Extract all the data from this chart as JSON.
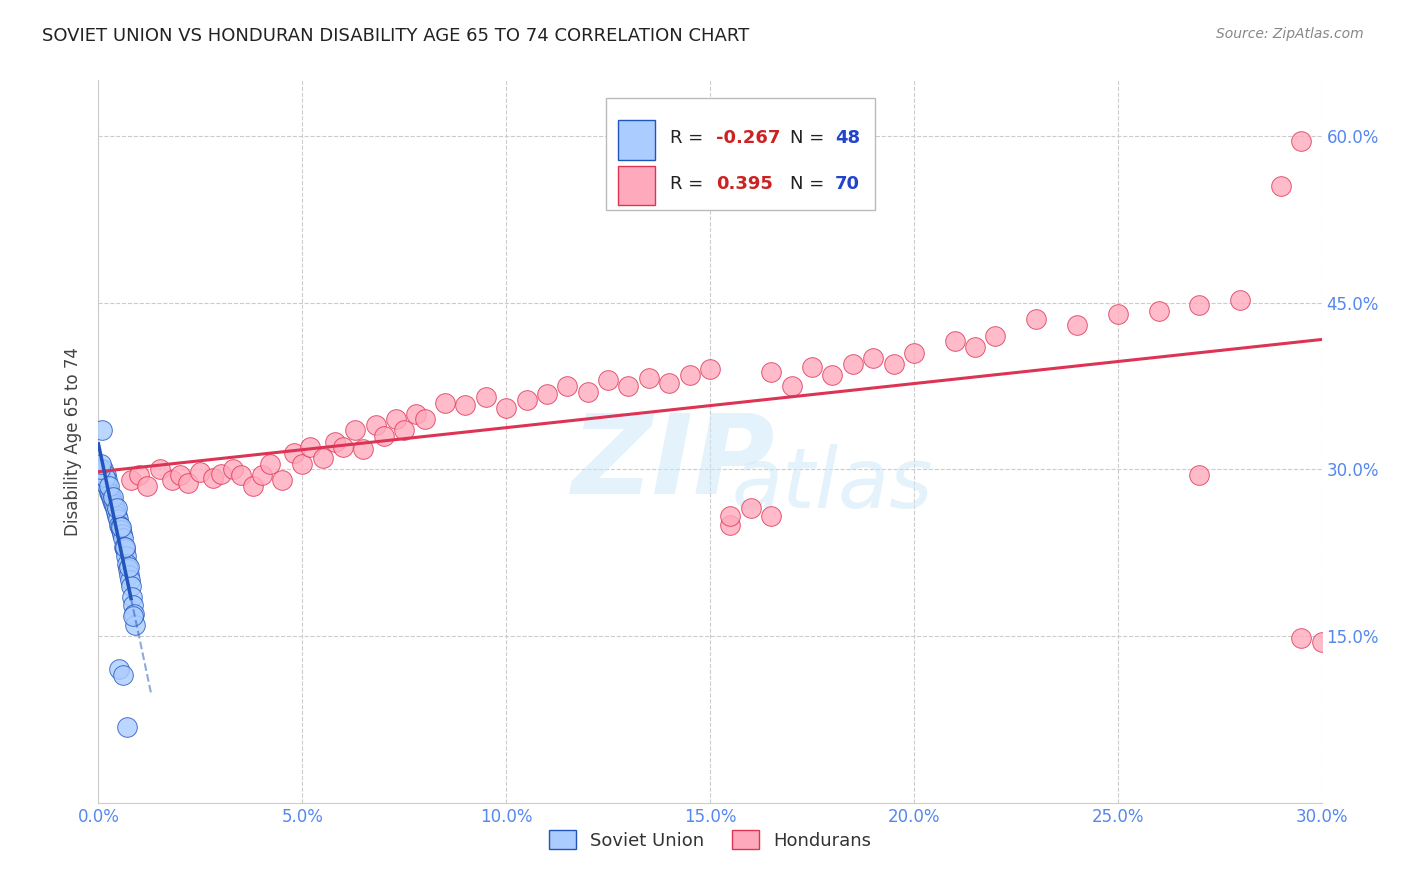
{
  "title": "SOVIET UNION VS HONDURAN DISABILITY AGE 65 TO 74 CORRELATION CHART",
  "source": "Source: ZipAtlas.com",
  "ylabel": "Disability Age 65 to 74",
  "xlim": [
    0.0,
    0.3
  ],
  "ylim": [
    0.0,
    0.65
  ],
  "xticks": [
    0.0,
    0.05,
    0.1,
    0.15,
    0.2,
    0.25,
    0.3
  ],
  "yticks": [
    0.15,
    0.3,
    0.45,
    0.6
  ],
  "ytick_labels": [
    "15.0%",
    "30.0%",
    "45.0%",
    "60.0%"
  ],
  "xtick_labels": [
    "0.0%",
    "5.0%",
    "10.0%",
    "15.0%",
    "20.0%",
    "25.0%",
    "30.0%"
  ],
  "soviet_color": "#aaccff",
  "honduran_color": "#ffaabc",
  "soviet_line_color": "#2255bb",
  "honduran_line_color": "#dd3355",
  "background_color": "#ffffff",
  "grid_color": "#cccccc",
  "soviet_x": [
    0.0008,
    0.001,
    0.0012,
    0.0015,
    0.0018,
    0.002,
    0.0022,
    0.0025,
    0.0028,
    0.003,
    0.0033,
    0.0035,
    0.0038,
    0.004,
    0.0042,
    0.0045,
    0.0048,
    0.005,
    0.0052,
    0.0055,
    0.0058,
    0.006,
    0.0063,
    0.0065,
    0.0068,
    0.007,
    0.0073,
    0.0075,
    0.0078,
    0.008,
    0.0083,
    0.0085,
    0.0088,
    0.009,
    0.0005,
    0.0015,
    0.0025,
    0.0035,
    0.0045,
    0.0055,
    0.0065,
    0.0075,
    0.0085,
    0.0003,
    0.0007,
    0.005,
    0.006,
    0.007
  ],
  "soviet_y": [
    0.335,
    0.295,
    0.3,
    0.29,
    0.295,
    0.285,
    0.29,
    0.28,
    0.278,
    0.275,
    0.272,
    0.27,
    0.268,
    0.265,
    0.262,
    0.258,
    0.255,
    0.25,
    0.248,
    0.245,
    0.242,
    0.238,
    0.23,
    0.228,
    0.222,
    0.215,
    0.21,
    0.205,
    0.2,
    0.195,
    0.185,
    0.178,
    0.17,
    0.16,
    0.298,
    0.293,
    0.285,
    0.275,
    0.265,
    0.248,
    0.23,
    0.212,
    0.168,
    0.3,
    0.305,
    0.12,
    0.115,
    0.068
  ],
  "honduran_x": [
    0.008,
    0.01,
    0.012,
    0.015,
    0.018,
    0.02,
    0.022,
    0.025,
    0.028,
    0.03,
    0.033,
    0.035,
    0.038,
    0.04,
    0.042,
    0.045,
    0.048,
    0.05,
    0.052,
    0.055,
    0.058,
    0.06,
    0.063,
    0.065,
    0.068,
    0.07,
    0.073,
    0.075,
    0.078,
    0.08,
    0.085,
    0.09,
    0.095,
    0.1,
    0.105,
    0.11,
    0.115,
    0.12,
    0.125,
    0.13,
    0.135,
    0.14,
    0.145,
    0.15,
    0.155,
    0.16,
    0.165,
    0.17,
    0.175,
    0.18,
    0.185,
    0.19,
    0.195,
    0.2,
    0.21,
    0.215,
    0.22,
    0.23,
    0.24,
    0.25,
    0.26,
    0.27,
    0.28,
    0.29,
    0.295,
    0.3,
    0.155,
    0.165,
    0.27,
    0.295
  ],
  "honduran_y": [
    0.29,
    0.295,
    0.285,
    0.3,
    0.29,
    0.295,
    0.288,
    0.298,
    0.292,
    0.296,
    0.3,
    0.295,
    0.285,
    0.295,
    0.305,
    0.29,
    0.315,
    0.305,
    0.32,
    0.31,
    0.325,
    0.32,
    0.335,
    0.318,
    0.34,
    0.33,
    0.345,
    0.335,
    0.35,
    0.345,
    0.36,
    0.358,
    0.365,
    0.355,
    0.362,
    0.368,
    0.375,
    0.37,
    0.38,
    0.375,
    0.382,
    0.378,
    0.385,
    0.39,
    0.25,
    0.265,
    0.388,
    0.375,
    0.392,
    0.385,
    0.395,
    0.4,
    0.395,
    0.405,
    0.415,
    0.41,
    0.42,
    0.435,
    0.43,
    0.44,
    0.442,
    0.448,
    0.452,
    0.555,
    0.595,
    0.145,
    0.258,
    0.258,
    0.295,
    0.148
  ]
}
